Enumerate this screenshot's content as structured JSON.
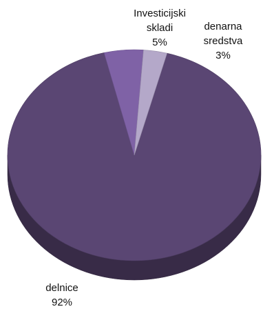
{
  "chart_data": {
    "type": "pie",
    "style": "3d",
    "title": "",
    "slices": [
      {
        "label": "delnice",
        "value": 92,
        "value_label": "92%",
        "color": "#5a4673"
      },
      {
        "label": "Investicijski\nskladi",
        "value": 5,
        "value_label": "5%",
        "color": "#7f62a6"
      },
      {
        "label": "denarna\nsredstva",
        "value": 3,
        "value_label": "3%",
        "color": "#b4a8c9"
      }
    ]
  }
}
